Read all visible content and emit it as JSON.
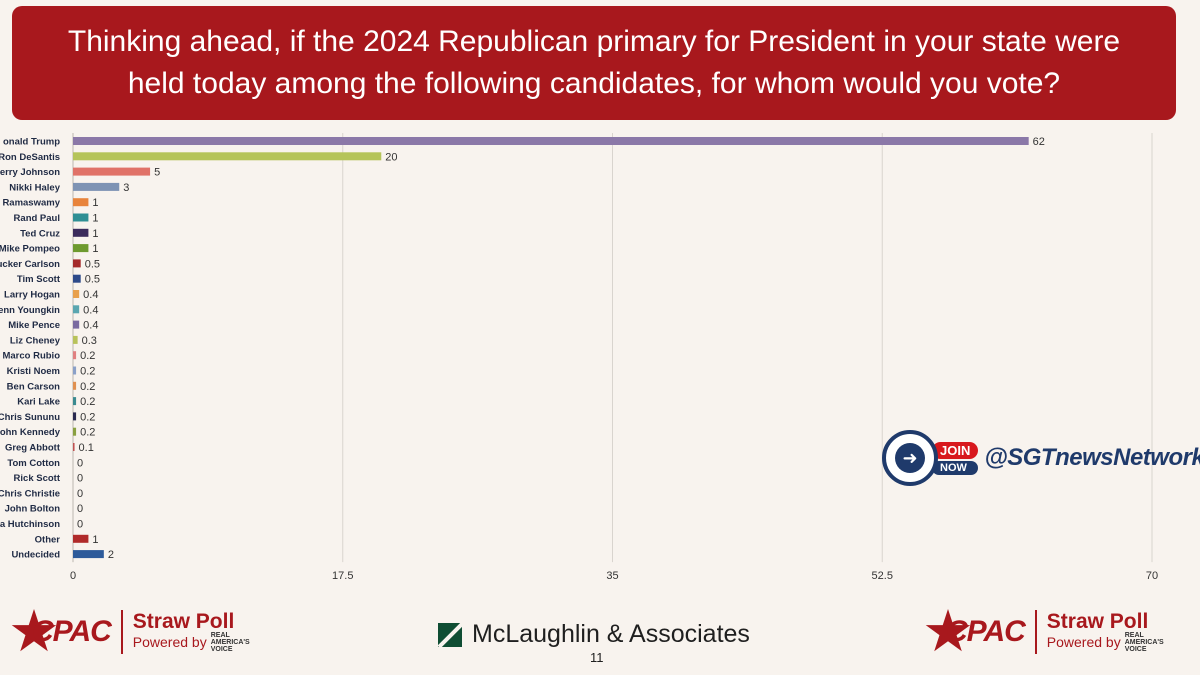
{
  "header": {
    "title_line1": "Thinking ahead, if the 2024 Republican primary for President in your state were",
    "title_line2": "held today among the following candidates, for whom would you vote?"
  },
  "chart_data": {
    "type": "bar",
    "orientation": "horizontal",
    "categories": [
      "onald Trump",
      "Ron DeSantis",
      "erry Johnson",
      "Nikki Haley",
      "Ramaswamy",
      "Rand Paul",
      "Ted Cruz",
      "Mike Pompeo",
      "ucker Carlson",
      "Tim Scott",
      "Larry Hogan",
      "enn Youngkin",
      "Mike Pence",
      "Liz Cheney",
      "Marco Rubio",
      "Kristi Noem",
      "Ben Carson",
      "Kari Lake",
      "Chris Sununu",
      "ohn Kennedy",
      "Greg Abbott",
      "Tom Cotton",
      "Rick Scott",
      "Chris Christie",
      "John Bolton",
      "a Hutchinson",
      "Other",
      "Undecided"
    ],
    "values": [
      62,
      20,
      5,
      3,
      1,
      1,
      1,
      1,
      0.5,
      0.5,
      0.4,
      0.4,
      0.4,
      0.3,
      0.2,
      0.2,
      0.2,
      0.2,
      0.2,
      0.2,
      0.1,
      0,
      0,
      0,
      0,
      0,
      1,
      2
    ],
    "value_labels": [
      "62",
      "20",
      "5",
      "3",
      "1",
      "1",
      "1",
      "1",
      "0.5",
      "0.5",
      "0.4",
      "0.4",
      "0.4",
      "0.3",
      "0.2",
      "0.2",
      "0.2",
      "0.2",
      "0.2",
      "0.2",
      "0.1",
      "0",
      "0",
      "0",
      "0",
      "0",
      "1",
      "2"
    ],
    "colors": [
      "#8b78a8",
      "#b5c45a",
      "#e07268",
      "#7e93b4",
      "#e8843c",
      "#2f8f94",
      "#3b2b5c",
      "#6e9a2f",
      "#a32a2a",
      "#2d4a8a",
      "#e8a04c",
      "#5aa6b0",
      "#7a6aa0",
      "#b8c25a",
      "#e08080",
      "#8aa0c8",
      "#e09050",
      "#3a8a90",
      "#2a2a50",
      "#8aa040",
      "#c05050",
      "#888888",
      "#888888",
      "#888888",
      "#888888",
      "#888888",
      "#b02a2a",
      "#2d5a9a"
    ],
    "xlim": [
      0,
      70
    ],
    "xticks": [
      "0",
      "17.5",
      "35",
      "52.5",
      "70"
    ],
    "xtick_values": [
      0,
      17.5,
      35,
      52.5,
      70
    ],
    "grid": "vertical"
  },
  "footer": {
    "cpac_text": "CPAC",
    "straw_poll": "Straw Poll",
    "powered_by": "Powered by",
    "rav_line1": "REAL",
    "rav_line2": "AMERICA'S",
    "rav_line3": "VOICE",
    "pollster": "McLaughlin & Associates",
    "page_number": "11"
  },
  "watermark": {
    "join": "JOIN",
    "now": "NOW",
    "handle": "@SGTnewsNetwork"
  }
}
